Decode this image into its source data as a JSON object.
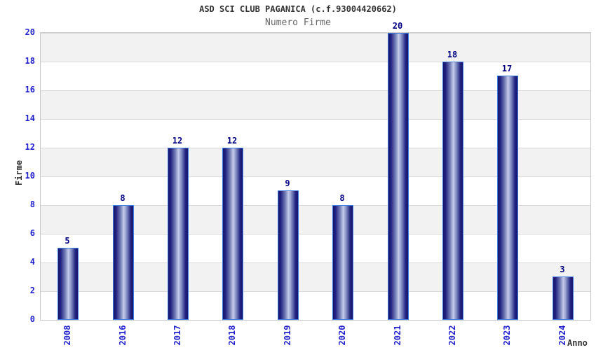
{
  "chart_data": {
    "type": "bar",
    "title": "ASD SCI CLUB PAGANICA (c.f.93004420662)",
    "subtitle": "Numero Firme",
    "xlabel": "Anno",
    "ylabel": "Firme",
    "categories": [
      "2008",
      "2016",
      "2017",
      "2018",
      "2019",
      "2020",
      "2021",
      "2022",
      "2023",
      "2024"
    ],
    "values": [
      5,
      8,
      12,
      12,
      9,
      8,
      20,
      18,
      17,
      3
    ],
    "ylim": [
      0,
      20
    ],
    "ytick_step": 2,
    "yticks": [
      0,
      2,
      4,
      6,
      8,
      10,
      12,
      14,
      16,
      18,
      20
    ],
    "bar_value_labels": [
      "5",
      "8",
      "12",
      "12",
      "9",
      "8",
      "20",
      "18",
      "17",
      "3"
    ],
    "legend": "none",
    "grid": "horizontal-bands",
    "band_colors": [
      "#f2f2f2",
      "#ffffff"
    ],
    "colors": {
      "title_text": "#333333",
      "subtitle_text": "#666666",
      "axis_label_text": "#333333",
      "tick_label_text": "#2222cc",
      "bar_value_text": "#000080",
      "bar_dark": "#17176f",
      "bar_highlight": "#c6cdea",
      "bar_border": "#3f7de0",
      "plot_border": "#c9c9c9",
      "grid_line": "#d9d9d9"
    }
  }
}
